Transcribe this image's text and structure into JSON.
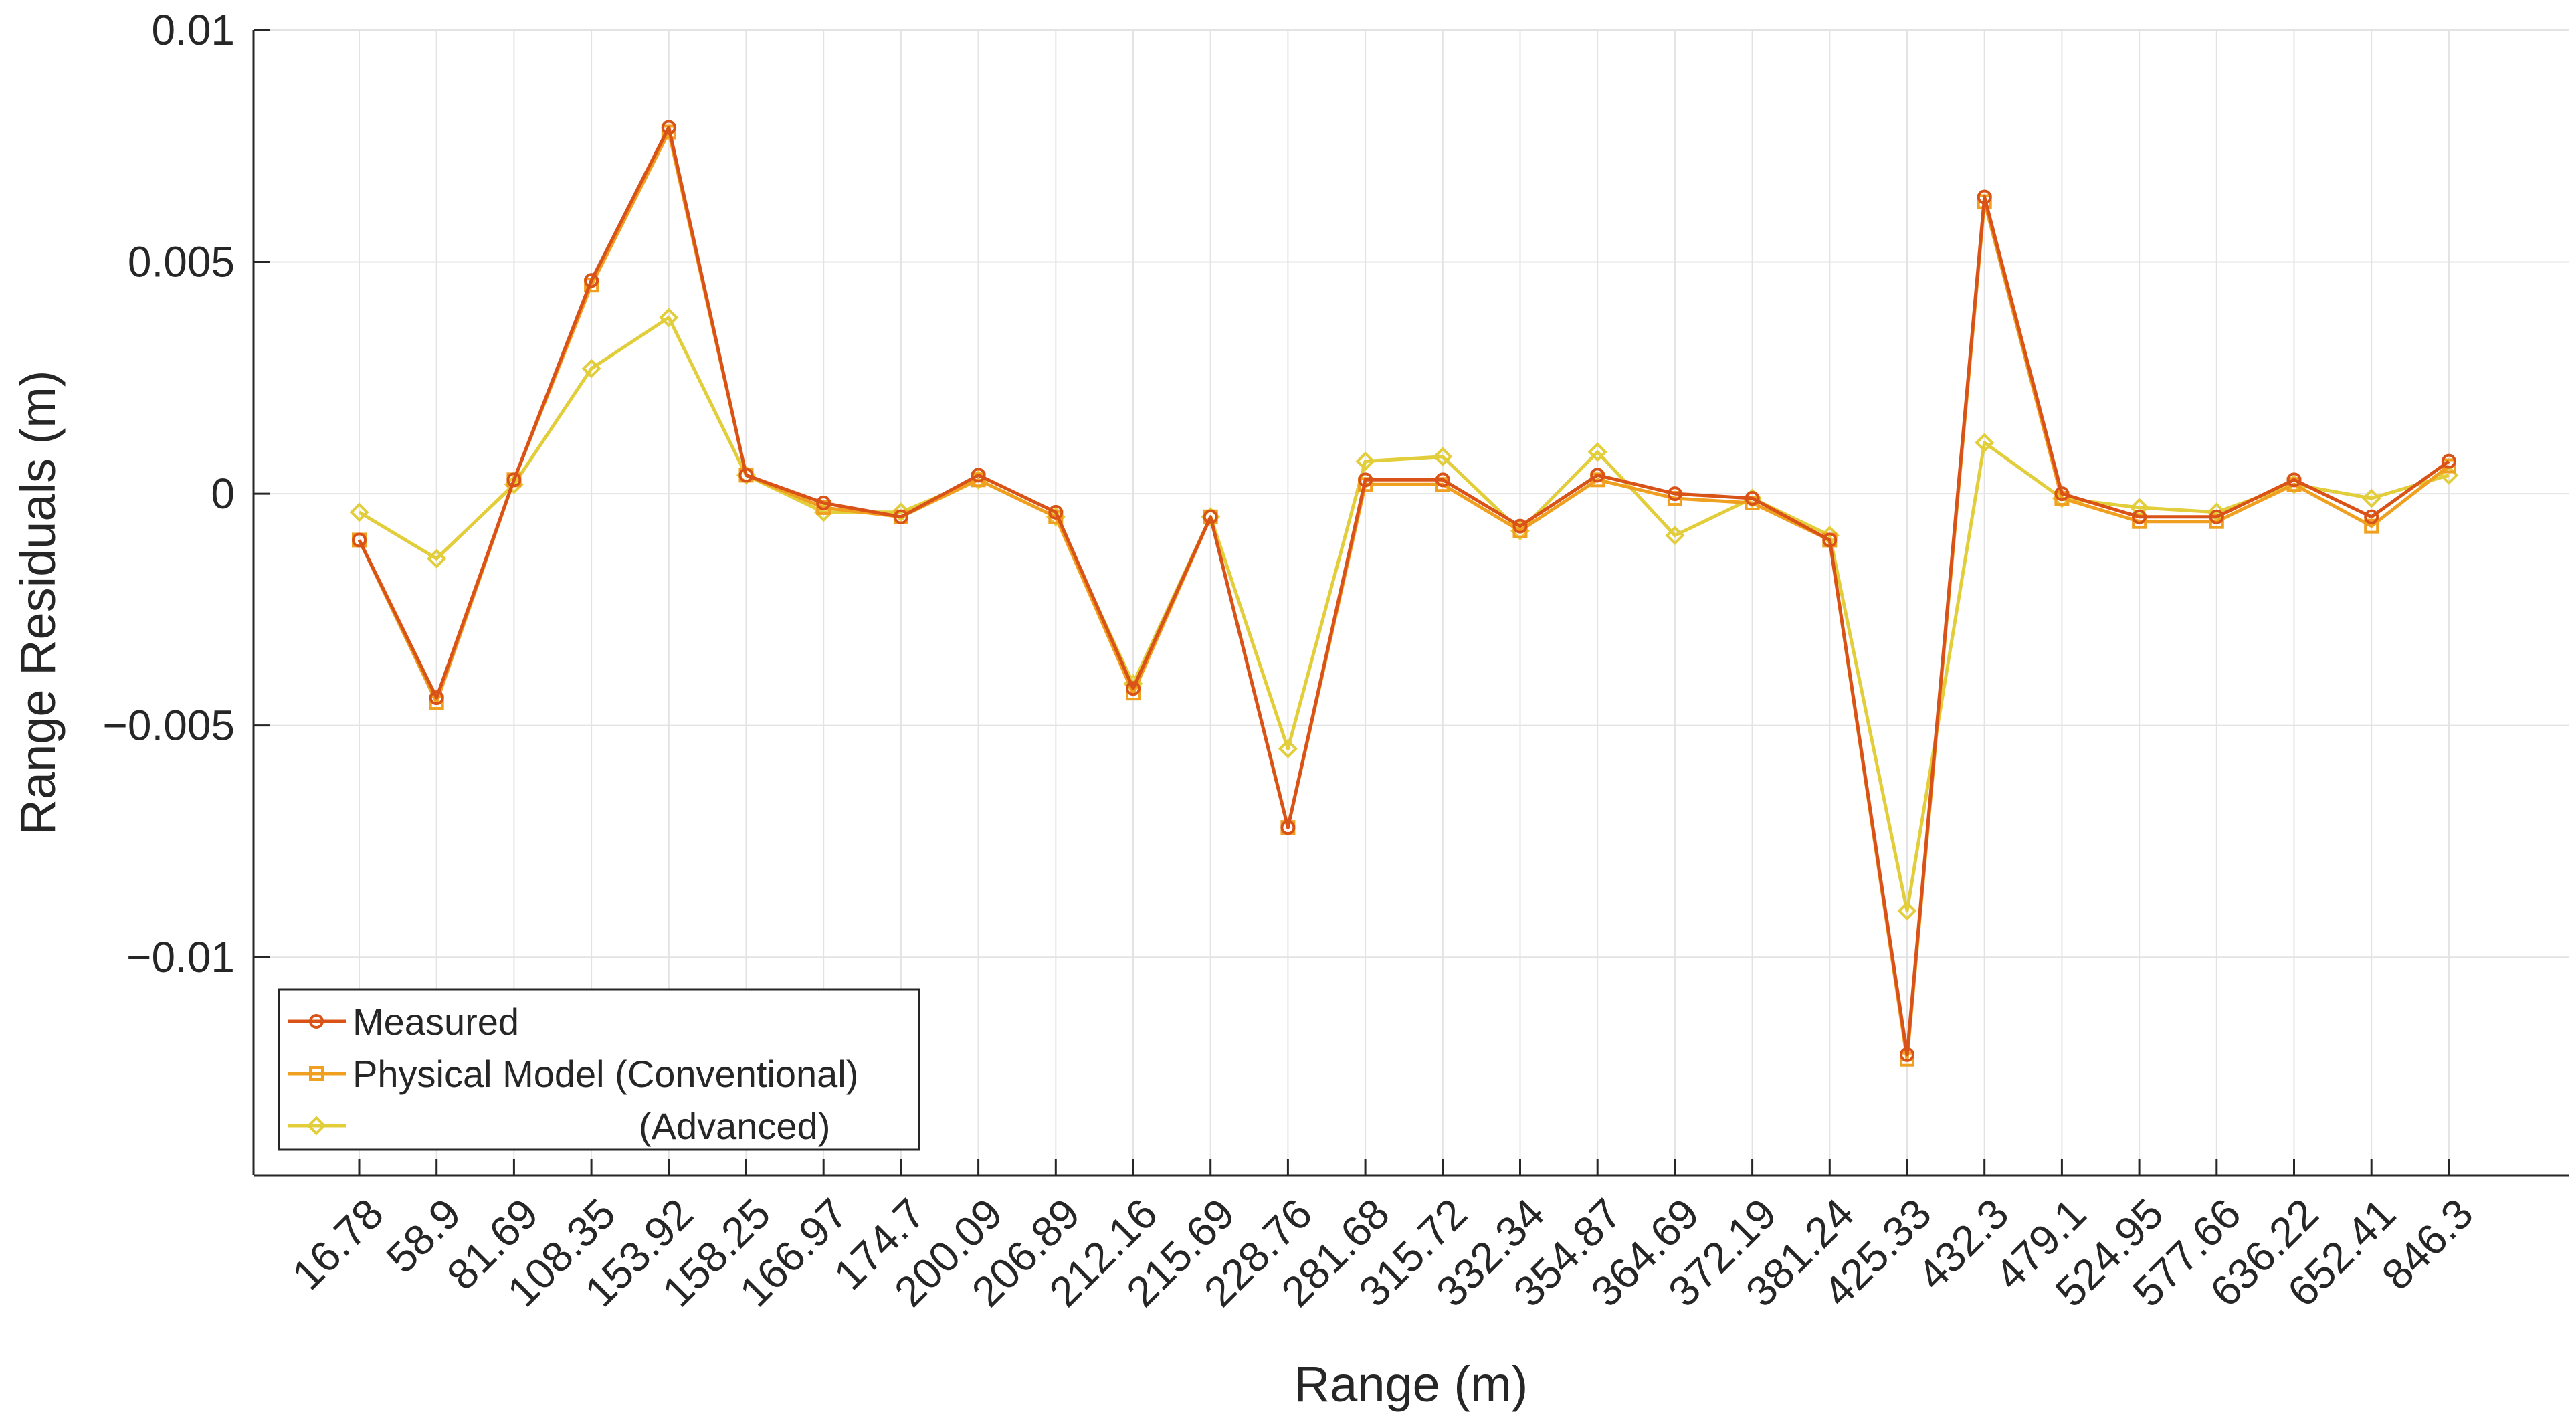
{
  "chart_data": {
    "type": "line",
    "xlabel": "Range (m)",
    "ylabel": "Range Residuals (m)",
    "ylim": [
      -0.0147,
      0.01
    ],
    "yticks": [
      0.01,
      0.005,
      0,
      -0.005,
      -0.01
    ],
    "ytick_labels": [
      "0.01",
      "0.005",
      "0",
      "−0.005",
      "−0.01"
    ],
    "grid": true,
    "legend_position": "bottom-left",
    "categories": [
      "16.78",
      "58.9",
      "81.69",
      "108.35",
      "153.92",
      "158.25",
      "166.97",
      "174.7",
      "200.09",
      "206.89",
      "212.16",
      "215.69",
      "228.76",
      "281.68",
      "315.72",
      "332.34",
      "354.87",
      "364.69",
      "372.19",
      "381.24",
      "425.33",
      "432.3",
      "479.1",
      "524.95",
      "577.66",
      "636.22",
      "652.41",
      "846.3"
    ],
    "series": [
      {
        "name": "Measured",
        "color": "#D95319",
        "marker": "circle",
        "values": [
          -0.001,
          -0.0044,
          0.0003,
          0.0046,
          0.0079,
          0.0004,
          -0.0002,
          -0.0005,
          0.0004,
          -0.0004,
          -0.0042,
          -0.0005,
          -0.0072,
          0.0003,
          0.0003,
          -0.0007,
          0.0004,
          0.0,
          -0.0001,
          -0.001,
          -0.0121,
          0.0064,
          0.0,
          -0.0005,
          -0.0005,
          0.0003,
          -0.0005,
          0.0007
        ]
      },
      {
        "name": "Physical Model (Conventional)",
        "color": "#F0A020",
        "marker": "square",
        "values": [
          -0.001,
          -0.0045,
          0.0003,
          0.0045,
          0.0078,
          0.0004,
          -0.0003,
          -0.0005,
          0.0003,
          -0.0005,
          -0.0043,
          -0.0005,
          -0.0072,
          0.0002,
          0.0002,
          -0.0008,
          0.0003,
          -0.0001,
          -0.0002,
          -0.001,
          -0.0122,
          0.0063,
          -0.0001,
          -0.0006,
          -0.0006,
          0.0002,
          -0.0007,
          0.0006
        ]
      },
      {
        "name": "(Advanced)",
        "color": "#E2CD3A",
        "marker": "diamond",
        "values": [
          -0.0004,
          -0.0014,
          0.0002,
          0.0027,
          0.0038,
          0.0004,
          -0.0004,
          -0.0004,
          0.0003,
          -0.0005,
          -0.0041,
          -0.0005,
          -0.0055,
          0.0007,
          0.0008,
          -0.0008,
          0.0009,
          -0.0009,
          -0.0001,
          -0.0009,
          -0.009,
          0.0011,
          -0.0001,
          -0.0003,
          -0.0004,
          0.0002,
          -0.0001,
          0.0004
        ]
      }
    ]
  }
}
